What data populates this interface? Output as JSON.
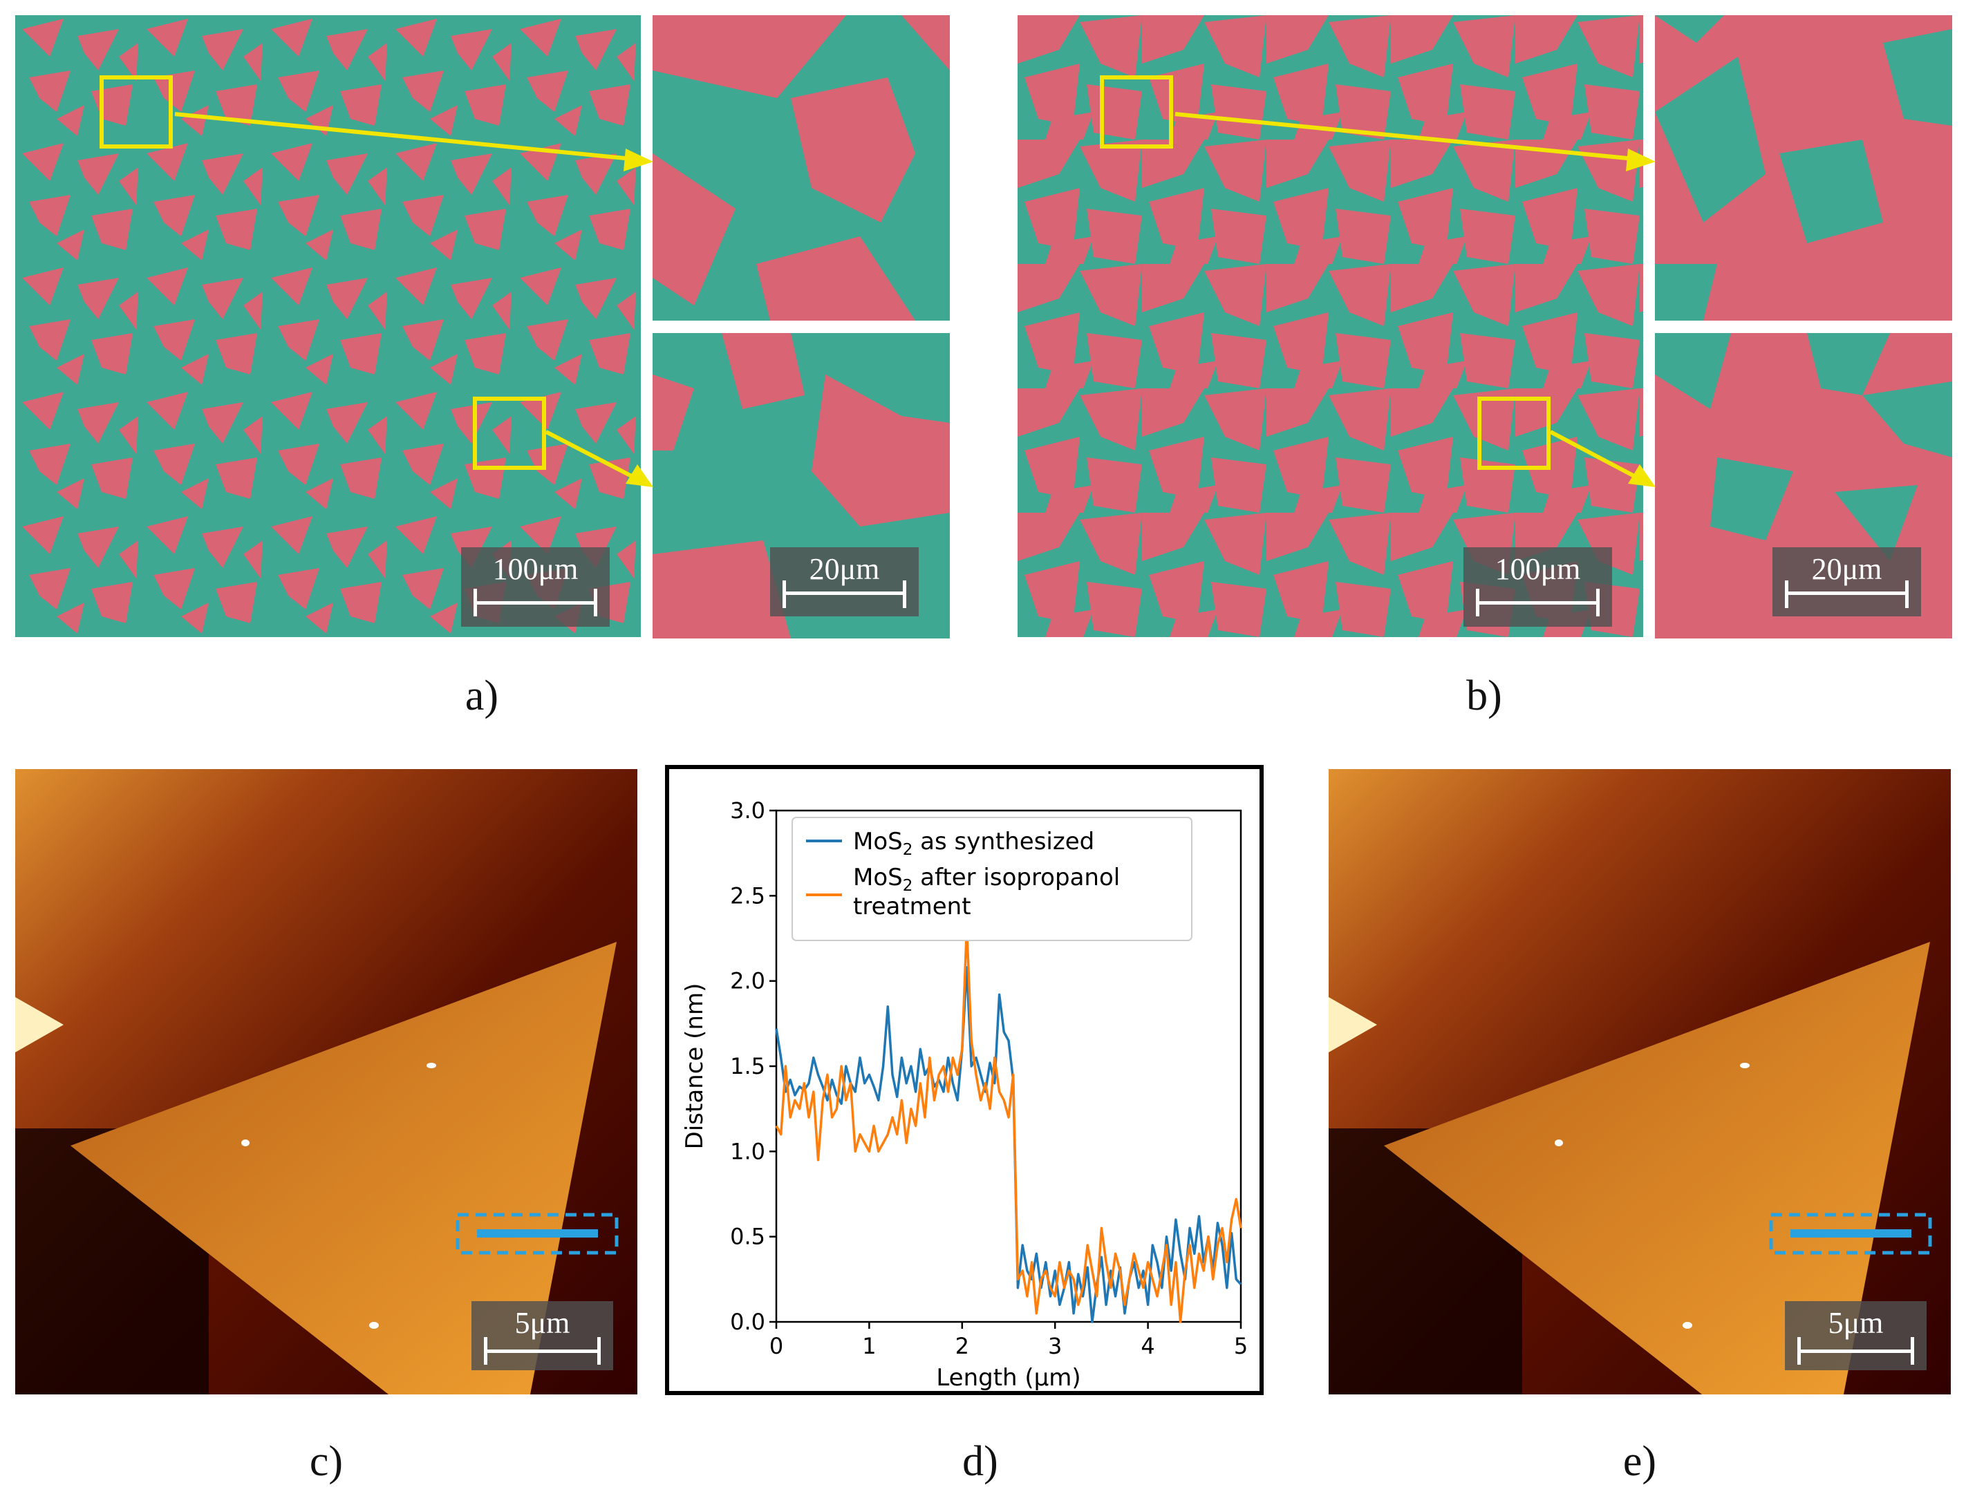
{
  "panels": {
    "a": {
      "caption": "a)",
      "scale_main": "100μm",
      "scale_zoom": "20μm"
    },
    "b": {
      "caption": "b)",
      "scale_main": "100μm",
      "scale_zoom": "20μm"
    },
    "c": {
      "caption": "c)",
      "scale": "5μm"
    },
    "d": {
      "caption": "d)"
    },
    "e": {
      "caption": "e)",
      "scale": "5μm"
    }
  },
  "colors": {
    "teal": "#3fa893",
    "pink": "#d96474",
    "yellow": "#f2e600",
    "afm_dark": "#1a0000",
    "afm_mid": "#8a2a05",
    "afm_bright": "#f0a030",
    "blue": "#1f77b4",
    "orange": "#ff7f0e",
    "marker_blue": "#2aa2e0"
  },
  "chart_data": {
    "type": "line",
    "xlabel": "Length (μm)",
    "ylabel": "Distance (nm)",
    "xlim": [
      0,
      5
    ],
    "ylim": [
      0,
      3
    ],
    "x_ticks": [
      "0",
      "1",
      "2",
      "3",
      "4",
      "5"
    ],
    "y_ticks": [
      "0.0",
      "0.5",
      "1.0",
      "1.5",
      "2.0",
      "2.5",
      "3.0"
    ],
    "legend_position": "top",
    "series": [
      {
        "name": "MoS2 as synthesized",
        "legend_main": "MoS",
        "legend_sub": "2",
        "legend_rest": " as synthesized",
        "color": "#1f77b4",
        "x": [
          0.0,
          0.05,
          0.1,
          0.15,
          0.2,
          0.25,
          0.3,
          0.35,
          0.4,
          0.45,
          0.5,
          0.55,
          0.6,
          0.65,
          0.7,
          0.75,
          0.8,
          0.85,
          0.9,
          0.95,
          1.0,
          1.05,
          1.1,
          1.15,
          1.2,
          1.25,
          1.3,
          1.35,
          1.4,
          1.45,
          1.5,
          1.55,
          1.6,
          1.65,
          1.7,
          1.75,
          1.8,
          1.85,
          1.9,
          1.95,
          2.0,
          2.05,
          2.1,
          2.15,
          2.2,
          2.25,
          2.3,
          2.35,
          2.4,
          2.45,
          2.5,
          2.55,
          2.6,
          2.65,
          2.7,
          2.75,
          2.8,
          2.85,
          2.9,
          2.95,
          3.0,
          3.05,
          3.1,
          3.15,
          3.2,
          3.25,
          3.3,
          3.35,
          3.4,
          3.45,
          3.5,
          3.55,
          3.6,
          3.65,
          3.7,
          3.75,
          3.8,
          3.85,
          3.9,
          3.95,
          4.0,
          4.05,
          4.1,
          4.15,
          4.2,
          4.25,
          4.3,
          4.35,
          4.4,
          4.45,
          4.5,
          4.55,
          4.6,
          4.65,
          4.7,
          4.75,
          4.8,
          4.85,
          4.9,
          4.95,
          5.0
        ],
        "y": [
          1.72,
          1.55,
          1.35,
          1.42,
          1.33,
          1.38,
          1.36,
          1.4,
          1.55,
          1.45,
          1.38,
          1.3,
          1.42,
          1.33,
          1.28,
          1.5,
          1.4,
          1.35,
          1.55,
          1.4,
          1.45,
          1.38,
          1.3,
          1.5,
          1.85,
          1.45,
          1.32,
          1.55,
          1.4,
          1.5,
          1.35,
          1.6,
          1.45,
          1.5,
          1.38,
          1.42,
          1.35,
          1.55,
          1.4,
          1.3,
          1.6,
          2.08,
          1.5,
          1.55,
          1.45,
          1.35,
          1.52,
          1.4,
          1.92,
          1.7,
          1.65,
          1.42,
          0.2,
          0.45,
          0.3,
          0.25,
          0.4,
          0.2,
          0.35,
          0.15,
          0.3,
          0.1,
          0.2,
          0.35,
          0.05,
          0.28,
          0.15,
          0.32,
          0.0,
          0.22,
          0.38,
          0.1,
          0.3,
          0.15,
          0.32,
          0.05,
          0.25,
          0.35,
          0.2,
          0.3,
          0.1,
          0.45,
          0.35,
          0.2,
          0.5,
          0.3,
          0.6,
          0.4,
          0.25,
          0.55,
          0.4,
          0.62,
          0.35,
          0.5,
          0.3,
          0.58,
          0.45,
          0.2,
          0.52,
          0.25,
          0.22
        ]
      },
      {
        "name": "MoS2 after isopropanol treatment",
        "legend_main": "MoS",
        "legend_sub": "2",
        "legend_rest": " after isopropanol",
        "legend_line2": "treatment",
        "color": "#ff7f0e",
        "x": [
          0.0,
          0.05,
          0.1,
          0.15,
          0.2,
          0.25,
          0.3,
          0.35,
          0.4,
          0.45,
          0.5,
          0.55,
          0.6,
          0.65,
          0.7,
          0.75,
          0.8,
          0.85,
          0.9,
          0.95,
          1.0,
          1.05,
          1.1,
          1.15,
          1.2,
          1.25,
          1.3,
          1.35,
          1.4,
          1.45,
          1.5,
          1.55,
          1.6,
          1.65,
          1.7,
          1.75,
          1.8,
          1.85,
          1.9,
          1.95,
          2.0,
          2.05,
          2.1,
          2.15,
          2.2,
          2.25,
          2.3,
          2.35,
          2.4,
          2.45,
          2.5,
          2.55,
          2.6,
          2.65,
          2.7,
          2.75,
          2.8,
          2.85,
          2.9,
          2.95,
          3.0,
          3.05,
          3.1,
          3.15,
          3.2,
          3.25,
          3.3,
          3.35,
          3.4,
          3.45,
          3.5,
          3.55,
          3.6,
          3.65,
          3.7,
          3.75,
          3.8,
          3.85,
          3.9,
          3.95,
          4.0,
          4.05,
          4.1,
          4.15,
          4.2,
          4.25,
          4.3,
          4.35,
          4.4,
          4.45,
          4.5,
          4.55,
          4.6,
          4.65,
          4.7,
          4.75,
          4.8,
          4.85,
          4.9,
          4.95,
          5.0
        ],
        "y": [
          1.15,
          1.1,
          1.5,
          1.2,
          1.3,
          1.25,
          1.4,
          1.2,
          1.35,
          0.95,
          1.3,
          1.45,
          1.2,
          1.25,
          1.5,
          1.3,
          1.4,
          1.0,
          1.1,
          1.05,
          1.0,
          1.15,
          1.0,
          1.05,
          1.1,
          1.2,
          1.1,
          1.3,
          1.05,
          1.25,
          1.15,
          1.4,
          1.2,
          1.55,
          1.3,
          1.45,
          1.5,
          1.35,
          1.55,
          1.45,
          1.6,
          2.32,
          1.65,
          1.45,
          1.3,
          1.4,
          1.25,
          1.55,
          1.35,
          1.3,
          1.2,
          1.45,
          0.25,
          0.3,
          0.15,
          0.35,
          0.05,
          0.25,
          0.3,
          0.2,
          0.15,
          0.35,
          0.2,
          0.3,
          0.25,
          0.1,
          0.2,
          0.45,
          0.3,
          0.15,
          0.55,
          0.35,
          0.2,
          0.4,
          0.3,
          0.1,
          0.25,
          0.4,
          0.3,
          0.2,
          0.35,
          0.25,
          0.15,
          0.3,
          0.45,
          0.1,
          0.35,
          0.0,
          0.3,
          0.45,
          0.2,
          0.4,
          0.3,
          0.5,
          0.25,
          0.45,
          0.55,
          0.35,
          0.6,
          0.72,
          0.55
        ]
      }
    ]
  }
}
